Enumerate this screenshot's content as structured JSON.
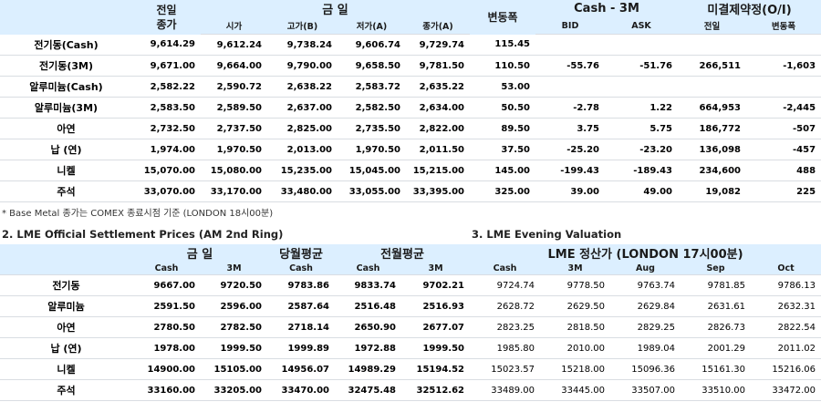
{
  "top_table": {
    "prev_close": [
      "전일",
      "종가"
    ],
    "today": "금   일",
    "change": "변동폭",
    "spread": "Cash - 3M",
    "open_interest": "미결제약정(O/I)",
    "columns": [
      "시가",
      "고가(B)",
      "저가(A)",
      "종가(A)",
      "BID",
      "ASK",
      "전일",
      "변동폭"
    ],
    "rows": [
      {
        "label": "전기동(Cash)",
        "cells": [
          "9,614.29",
          "9,612.24",
          "9,738.24",
          "9,606.74",
          "9,729.74",
          "115.45",
          null,
          null,
          null,
          null
        ]
      },
      {
        "label": "전기동(3M)",
        "cells": [
          "9,671.00",
          "9,664.00",
          "9,790.00",
          "9,658.50",
          "9,781.50",
          "110.50",
          "-55.76",
          "-51.76",
          "266,511",
          "-1,603"
        ]
      },
      {
        "label": "알루미늄(Cash)",
        "cells": [
          "2,582.22",
          "2,590.72",
          "2,638.22",
          "2,583.72",
          "2,635.22",
          "53.00",
          null,
          null,
          null,
          null
        ]
      },
      {
        "label": "알루미늄(3M)",
        "cells": [
          "2,583.50",
          "2,589.50",
          "2,637.00",
          "2,582.50",
          "2,634.00",
          "50.50",
          "-2.78",
          "1.22",
          "664,953",
          "-2,445"
        ]
      },
      {
        "label": "아연",
        "cells": [
          "2,732.50",
          "2,737.50",
          "2,825.00",
          "2,735.50",
          "2,822.00",
          "89.50",
          "3.75",
          "5.75",
          "186,772",
          "-507"
        ]
      },
      {
        "label": "납 (연)",
        "cells": [
          "1,974.00",
          "1,970.50",
          "2,013.00",
          "1,970.50",
          "2,011.50",
          "37.50",
          "-25.20",
          "-23.20",
          "136,098",
          "-457"
        ]
      },
      {
        "label": "니켈",
        "cells": [
          "15,070.00",
          "15,080.00",
          "15,235.00",
          "15,045.00",
          "15,215.00",
          "145.00",
          "-199.43",
          "-189.43",
          "234,600",
          "488"
        ]
      },
      {
        "label": "주석",
        "cells": [
          "33,070.00",
          "33,170.00",
          "33,480.00",
          "33,055.00",
          "33,395.00",
          "325.00",
          "39.00",
          "49.00",
          "19,082",
          "225"
        ]
      }
    ]
  },
  "note": "* Base Metal 종가는 COMEX 종료시점 기준 (LONDON 18시00분)",
  "official": {
    "title": "2. LME Official Settlement Prices (AM 2nd Ring)",
    "groups": [
      "금   일",
      "당월평균",
      "전월평균"
    ],
    "columns": [
      "Cash",
      "3M",
      "Cash",
      "Cash",
      "3M"
    ]
  },
  "evening": {
    "title": "3. LME Evening Valuation",
    "group": "LME 정산가 (LONDON 17시00분)",
    "columns": [
      "Cash",
      "3M",
      "Aug",
      "Sep",
      "Oct"
    ]
  },
  "bottom_rows": [
    {
      "label": "전기동",
      "official": [
        "9667.00",
        "9720.50",
        "9783.86",
        "9833.74",
        "9702.21"
      ],
      "evening": [
        "9724.74",
        "9778.50",
        "9763.74",
        "9781.85",
        "9786.13"
      ]
    },
    {
      "label": "알루미늄",
      "official": [
        "2591.50",
        "2596.00",
        "2587.64",
        "2516.48",
        "2516.93"
      ],
      "evening": [
        "2628.72",
        "2629.50",
        "2629.84",
        "2631.61",
        "2632.31"
      ]
    },
    {
      "label": "아연",
      "official": [
        "2780.50",
        "2782.50",
        "2718.14",
        "2650.90",
        "2677.07"
      ],
      "evening": [
        "2823.25",
        "2818.50",
        "2829.25",
        "2826.73",
        "2822.54"
      ]
    },
    {
      "label": "납 (연)",
      "official": [
        "1978.00",
        "1999.50",
        "1999.89",
        "1972.88",
        "1999.50"
      ],
      "evening": [
        "1985.80",
        "2010.00",
        "1989.04",
        "2001.29",
        "2011.02"
      ]
    },
    {
      "label": "니켈",
      "official": [
        "14900.00",
        "15105.00",
        "14956.07",
        "14989.29",
        "15194.52"
      ],
      "evening": [
        "15023.57",
        "15218.00",
        "15096.36",
        "15161.30",
        "15216.06"
      ]
    },
    {
      "label": "주석",
      "official": [
        "33160.00",
        "33205.00",
        "33470.00",
        "32475.48",
        "32512.62"
      ],
      "evening": [
        "33489.00",
        "33445.00",
        "33507.00",
        "33510.00",
        "33472.00"
      ]
    }
  ]
}
